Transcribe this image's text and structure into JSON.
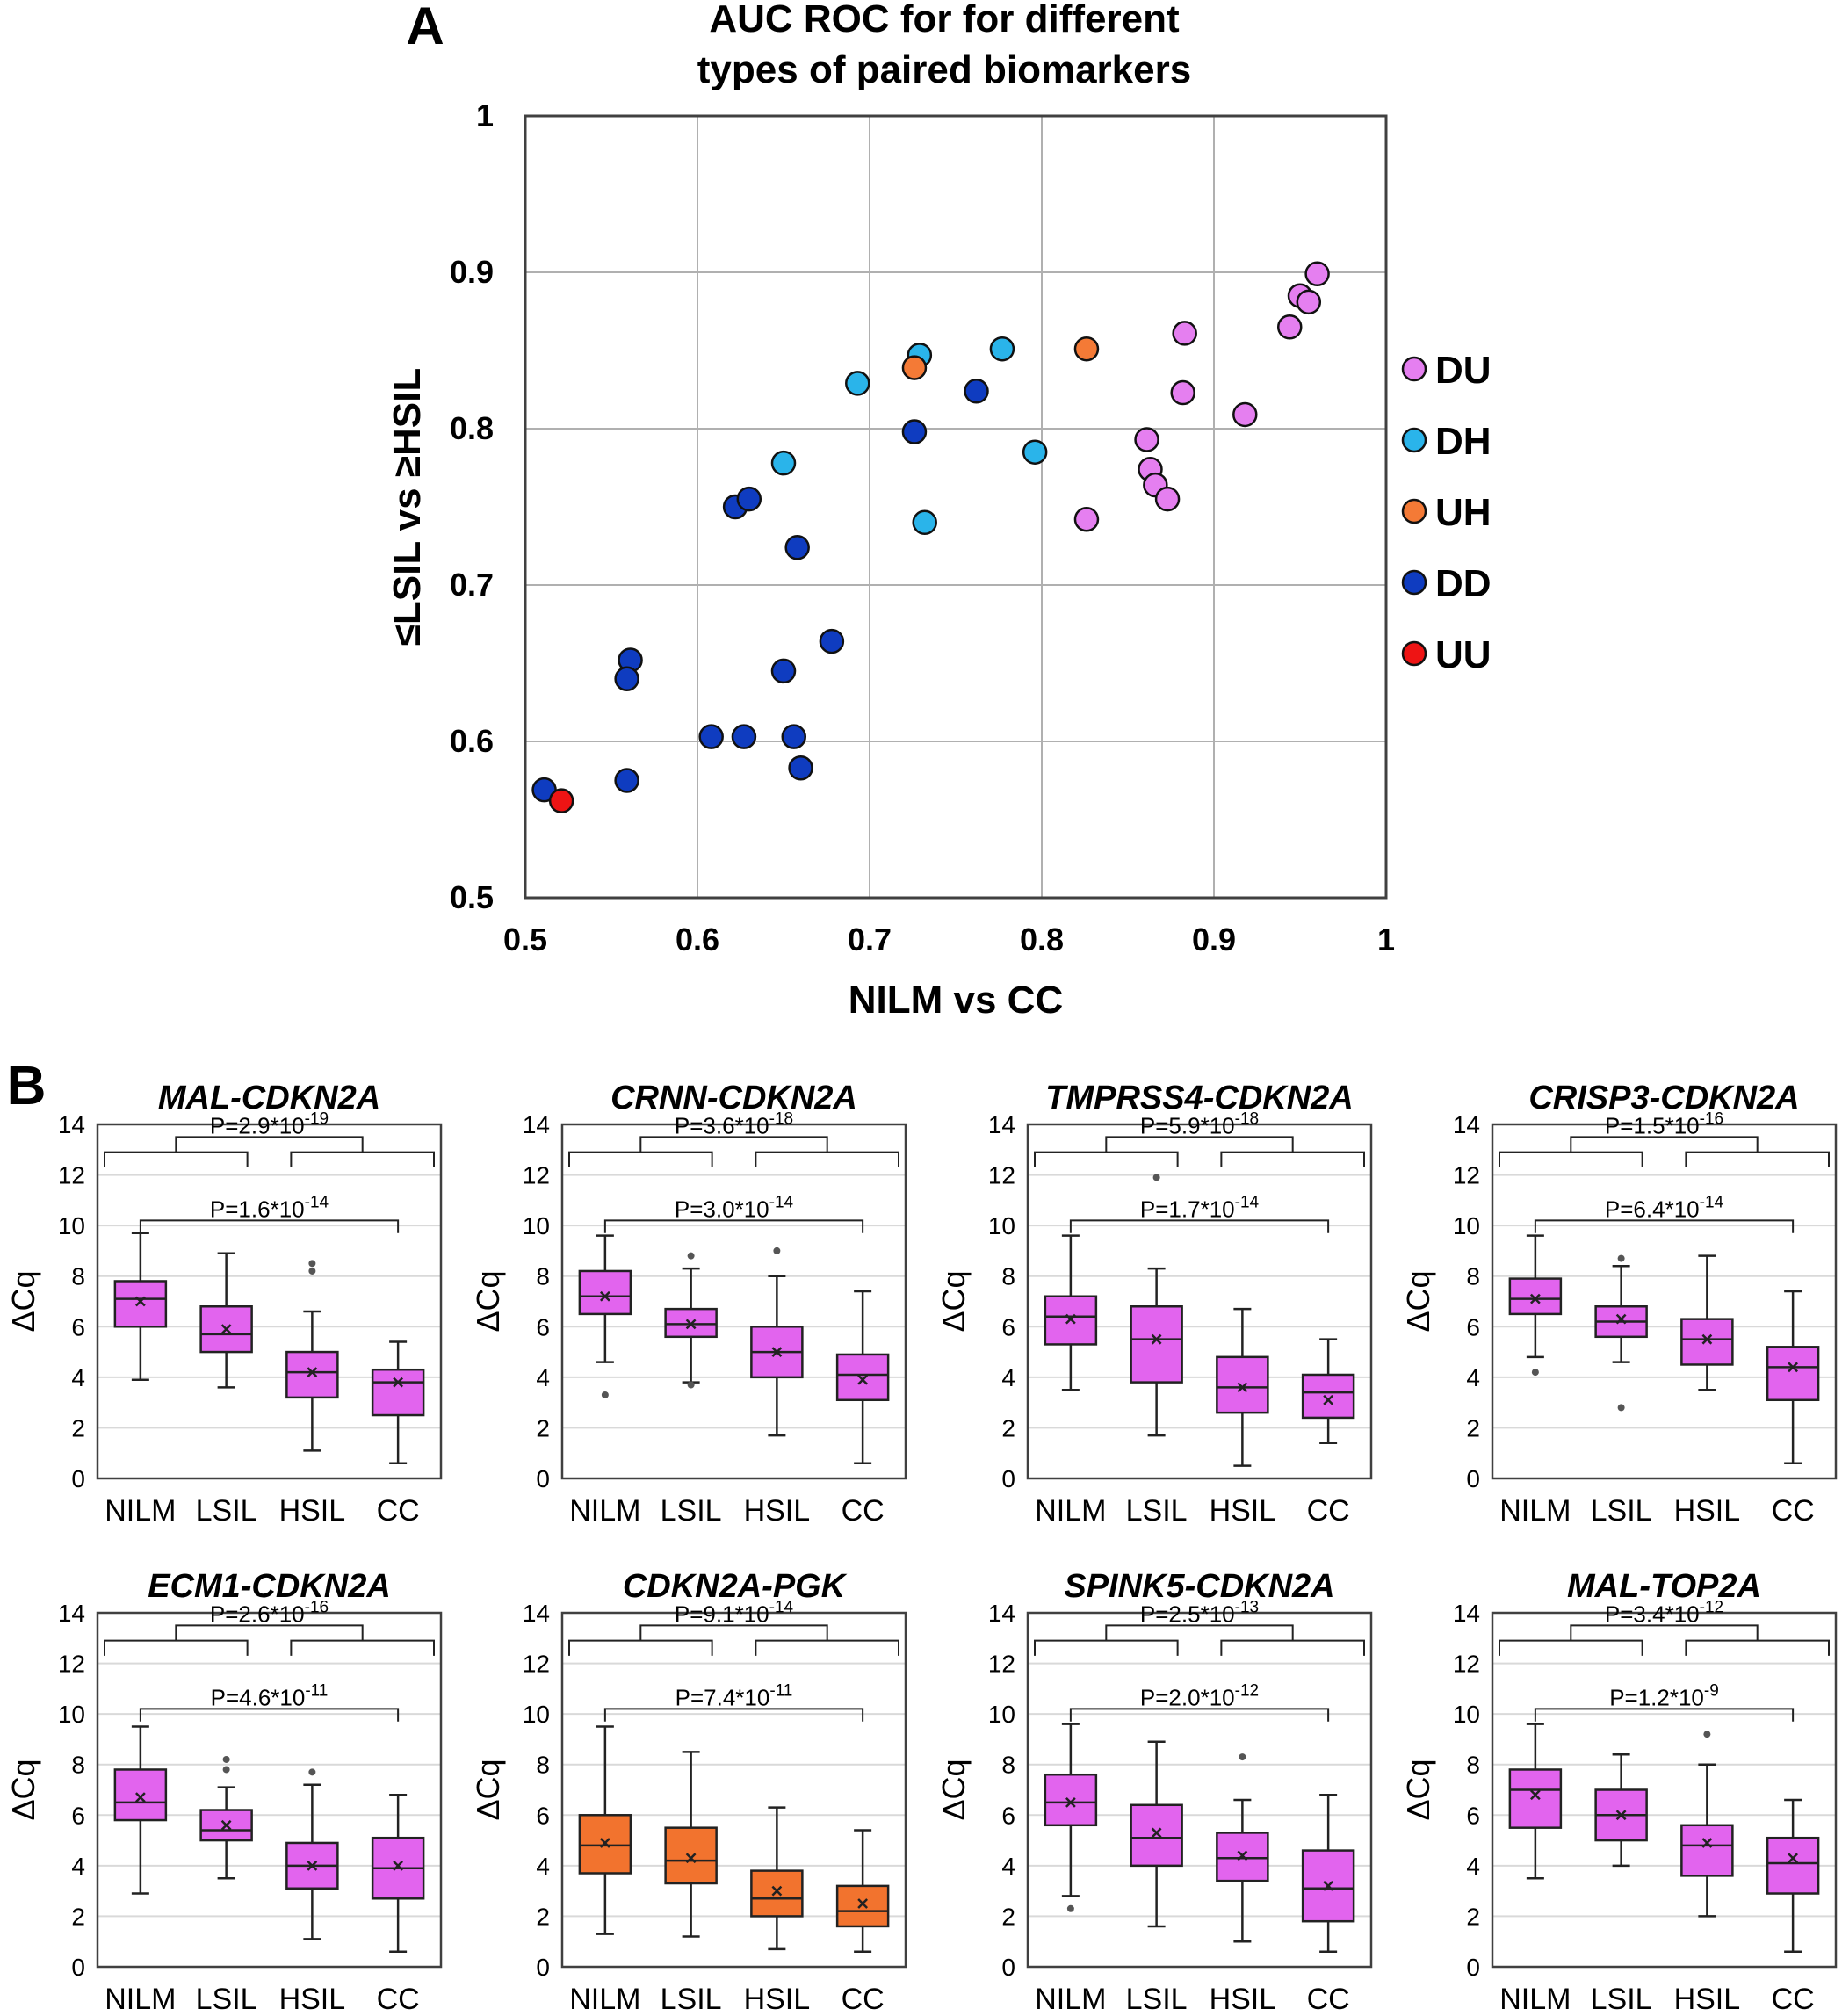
{
  "colors": {
    "DU": "#e57ff0",
    "DH": "#2ab4ea",
    "UH": "#f47a36",
    "DD": "#0f3cc0",
    "UU": "#ee1414",
    "box_magenta": "#e264ee",
    "box_orange": "#f2732e"
  },
  "panel_a": {
    "letter": "A",
    "title_line1": "AUC ROC for for different",
    "title_line2": "types of paired biomarkers"
  },
  "panel_b": {
    "letter": "B"
  },
  "chart_data": [
    {
      "type": "scatter",
      "title": "AUC ROC for for different types of paired biomarkers",
      "xlabel": "NILM vs CC",
      "ylabel": "≤LSIL vs ≥HSIL",
      "xlim": [
        0.5,
        1.0
      ],
      "ylim": [
        0.5,
        1.0
      ],
      "xticks": [
        "0.5",
        "0.6",
        "0.7",
        "0.8",
        "0.9",
        "1"
      ],
      "yticks": [
        "0.5",
        "0.6",
        "0.7",
        "0.8",
        "0.9",
        "1"
      ],
      "grid": true,
      "legend_position": "right",
      "legend": [
        "DU",
        "DH",
        "UH",
        "DD",
        "UU"
      ],
      "series": [
        {
          "name": "DU",
          "points": [
            [
              0.96,
              0.899
            ],
            [
              0.95,
              0.885
            ],
            [
              0.955,
              0.881
            ],
            [
              0.944,
              0.865
            ],
            [
              0.883,
              0.861
            ],
            [
              0.882,
              0.823
            ],
            [
              0.918,
              0.809
            ],
            [
              0.861,
              0.793
            ],
            [
              0.863,
              0.774
            ],
            [
              0.866,
              0.764
            ],
            [
              0.873,
              0.755
            ],
            [
              0.826,
              0.742
            ]
          ]
        },
        {
          "name": "DH",
          "points": [
            [
              0.729,
              0.847
            ],
            [
              0.777,
              0.851
            ],
            [
              0.693,
              0.829
            ],
            [
              0.65,
              0.778
            ],
            [
              0.796,
              0.785
            ],
            [
              0.732,
              0.74
            ]
          ]
        },
        {
          "name": "UH",
          "points": [
            [
              0.826,
              0.851
            ],
            [
              0.726,
              0.839
            ]
          ]
        },
        {
          "name": "DD",
          "points": [
            [
              0.762,
              0.824
            ],
            [
              0.726,
              0.798
            ],
            [
              0.622,
              0.75
            ],
            [
              0.63,
              0.755
            ],
            [
              0.658,
              0.724
            ],
            [
              0.678,
              0.664
            ],
            [
              0.561,
              0.652
            ],
            [
              0.559,
              0.64
            ],
            [
              0.65,
              0.645
            ],
            [
              0.608,
              0.603
            ],
            [
              0.627,
              0.603
            ],
            [
              0.656,
              0.603
            ],
            [
              0.66,
              0.583
            ],
            [
              0.559,
              0.575
            ],
            [
              0.511,
              0.569
            ]
          ]
        },
        {
          "name": "UU",
          "points": [
            [
              0.521,
              0.562
            ]
          ]
        }
      ]
    },
    {
      "type": "box",
      "title": "MAL-CDKN2A",
      "color": "magenta",
      "ylabel": "ΔCq",
      "ylim": [
        0,
        14
      ],
      "yticks": [
        "0",
        "2",
        "4",
        "6",
        "8",
        "10",
        "12",
        "14"
      ],
      "categories": [
        "NILM",
        "LSIL",
        "HSIL",
        "CC"
      ],
      "p_top": {
        "base": "P=2.9*10",
        "exp": "-19"
      },
      "p_bottom": {
        "base": "P=1.6*10",
        "exp": "-14"
      },
      "boxes": [
        {
          "min": 3.9,
          "q1": 6.0,
          "median": 7.1,
          "q3": 7.8,
          "max": 9.7,
          "mean": 7.0,
          "outliers": []
        },
        {
          "min": 3.6,
          "q1": 5.0,
          "median": 5.7,
          "q3": 6.8,
          "max": 8.9,
          "mean": 5.9,
          "outliers": []
        },
        {
          "min": 1.1,
          "q1": 3.2,
          "median": 4.2,
          "q3": 5.0,
          "max": 6.6,
          "mean": 4.2,
          "outliers": [
            8.5,
            8.2
          ]
        },
        {
          "min": 0.6,
          "q1": 2.5,
          "median": 3.8,
          "q3": 4.3,
          "max": 5.4,
          "mean": 3.8,
          "outliers": []
        }
      ]
    },
    {
      "type": "box",
      "title": "CRNN-CDKN2A",
      "color": "magenta",
      "ylabel": "ΔCq",
      "ylim": [
        0,
        14
      ],
      "yticks": [
        "0",
        "2",
        "4",
        "6",
        "8",
        "10",
        "12",
        "14"
      ],
      "categories": [
        "NILM",
        "LSIL",
        "HSIL",
        "CC"
      ],
      "p_top": {
        "base": "P=3.6*10",
        "exp": "-18"
      },
      "p_bottom": {
        "base": "P=3.0*10",
        "exp": "-14"
      },
      "boxes": [
        {
          "min": 4.6,
          "q1": 6.5,
          "median": 7.2,
          "q3": 8.2,
          "max": 9.6,
          "mean": 7.2,
          "outliers": [
            3.3
          ]
        },
        {
          "min": 3.8,
          "q1": 5.6,
          "median": 6.1,
          "q3": 6.7,
          "max": 8.3,
          "mean": 6.1,
          "outliers": [
            8.8,
            3.7
          ]
        },
        {
          "min": 1.7,
          "q1": 4.0,
          "median": 5.0,
          "q3": 6.0,
          "max": 8.0,
          "mean": 5.0,
          "outliers": [
            9.0
          ]
        },
        {
          "min": 0.6,
          "q1": 3.1,
          "median": 4.1,
          "q3": 4.9,
          "max": 7.4,
          "mean": 3.9,
          "outliers": []
        }
      ]
    },
    {
      "type": "box",
      "title": "TMPRSS4-CDKN2A",
      "color": "magenta",
      "ylabel": "ΔCq",
      "ylim": [
        0,
        14
      ],
      "yticks": [
        "0",
        "2",
        "4",
        "6",
        "8",
        "10",
        "12",
        "14"
      ],
      "categories": [
        "NILM",
        "LSIL",
        "HSIL",
        "CC"
      ],
      "p_top": {
        "base": "P=5.9*10",
        "exp": "-18"
      },
      "p_bottom": {
        "base": "P=1.7*10",
        "exp": "-14"
      },
      "boxes": [
        {
          "min": 3.5,
          "q1": 5.3,
          "median": 6.4,
          "q3": 7.2,
          "max": 9.6,
          "mean": 6.3,
          "outliers": []
        },
        {
          "min": 1.7,
          "q1": 3.8,
          "median": 5.5,
          "q3": 6.8,
          "max": 8.3,
          "mean": 5.5,
          "outliers": [
            11.9
          ]
        },
        {
          "min": 0.5,
          "q1": 2.6,
          "median": 3.6,
          "q3": 4.8,
          "max": 6.7,
          "mean": 3.6,
          "outliers": []
        },
        {
          "min": 1.4,
          "q1": 2.4,
          "median": 3.4,
          "q3": 4.1,
          "max": 5.5,
          "mean": 3.1,
          "outliers": []
        }
      ]
    },
    {
      "type": "box",
      "title": "CRISP3-CDKN2A",
      "color": "magenta",
      "ylabel": "ΔCq",
      "ylim": [
        0,
        14
      ],
      "yticks": [
        "0",
        "2",
        "4",
        "6",
        "8",
        "10",
        "12",
        "14"
      ],
      "categories": [
        "NILM",
        "LSIL",
        "HSIL",
        "CC"
      ],
      "p_top": {
        "base": "P=1.5*10",
        "exp": "-16"
      },
      "p_bottom": {
        "base": "P=6.4*10",
        "exp": "-14"
      },
      "boxes": [
        {
          "min": 4.8,
          "q1": 6.5,
          "median": 7.1,
          "q3": 7.9,
          "max": 9.6,
          "mean": 7.1,
          "outliers": [
            4.2
          ]
        },
        {
          "min": 4.6,
          "q1": 5.6,
          "median": 6.2,
          "q3": 6.8,
          "max": 8.4,
          "mean": 6.3,
          "outliers": [
            8.7,
            2.8
          ]
        },
        {
          "min": 3.5,
          "q1": 4.5,
          "median": 5.5,
          "q3": 6.3,
          "max": 8.8,
          "mean": 5.5,
          "outliers": []
        },
        {
          "min": 0.6,
          "q1": 3.1,
          "median": 4.4,
          "q3": 5.2,
          "max": 7.4,
          "mean": 4.4,
          "outliers": []
        }
      ]
    },
    {
      "type": "box",
      "title": "ECM1-CDKN2A",
      "color": "magenta",
      "ylabel": "ΔCq",
      "ylim": [
        0,
        14
      ],
      "yticks": [
        "0",
        "2",
        "4",
        "6",
        "8",
        "10",
        "12",
        "14"
      ],
      "categories": [
        "NILM",
        "LSIL",
        "HSIL",
        "CC"
      ],
      "p_top": {
        "base": "P=2.6*10",
        "exp": "-16"
      },
      "p_bottom": {
        "base": "P=4.6*10",
        "exp": "-11"
      },
      "boxes": [
        {
          "min": 2.9,
          "q1": 5.8,
          "median": 6.5,
          "q3": 7.8,
          "max": 9.5,
          "mean": 6.7,
          "outliers": []
        },
        {
          "min": 3.5,
          "q1": 5.0,
          "median": 5.4,
          "q3": 6.2,
          "max": 7.1,
          "mean": 5.6,
          "outliers": [
            8.2,
            7.8
          ]
        },
        {
          "min": 1.1,
          "q1": 3.1,
          "median": 4.0,
          "q3": 4.9,
          "max": 7.2,
          "mean": 4.0,
          "outliers": [
            7.7
          ]
        },
        {
          "min": 0.6,
          "q1": 2.7,
          "median": 3.9,
          "q3": 5.1,
          "max": 6.8,
          "mean": 4.0,
          "outliers": []
        }
      ]
    },
    {
      "type": "box",
      "title": "CDKN2A-PGK",
      "color": "orange",
      "ylabel": "ΔCq",
      "ylim": [
        0,
        14
      ],
      "yticks": [
        "0",
        "2",
        "4",
        "6",
        "8",
        "10",
        "12",
        "14"
      ],
      "categories": [
        "NILM",
        "LSIL",
        "HSIL",
        "CC"
      ],
      "p_top": {
        "base": "P=9.1*10",
        "exp": "-14"
      },
      "p_bottom": {
        "base": "P=7.4*10",
        "exp": "-11"
      },
      "boxes": [
        {
          "min": 1.3,
          "q1": 3.7,
          "median": 4.8,
          "q3": 6.0,
          "max": 9.5,
          "mean": 4.9,
          "outliers": []
        },
        {
          "min": 1.2,
          "q1": 3.3,
          "median": 4.2,
          "q3": 5.5,
          "max": 8.5,
          "mean": 4.3,
          "outliers": []
        },
        {
          "min": 0.7,
          "q1": 2.0,
          "median": 2.7,
          "q3": 3.8,
          "max": 6.3,
          "mean": 3.0,
          "outliers": []
        },
        {
          "min": 0.6,
          "q1": 1.6,
          "median": 2.2,
          "q3": 3.2,
          "max": 5.4,
          "mean": 2.5,
          "outliers": []
        }
      ]
    },
    {
      "type": "box",
      "title": "SPINK5-CDKN2A",
      "color": "magenta",
      "ylabel": "ΔCq",
      "ylim": [
        0,
        14
      ],
      "yticks": [
        "0",
        "2",
        "4",
        "6",
        "8",
        "10",
        "12",
        "14"
      ],
      "categories": [
        "NILM",
        "LSIL",
        "HSIL",
        "CC"
      ],
      "p_top": {
        "base": "P=2.5*10",
        "exp": "-13"
      },
      "p_bottom": {
        "base": "P=2.0*10",
        "exp": "-12"
      },
      "boxes": [
        {
          "min": 2.8,
          "q1": 5.6,
          "median": 6.5,
          "q3": 7.6,
          "max": 9.6,
          "mean": 6.5,
          "outliers": [
            2.3
          ]
        },
        {
          "min": 1.6,
          "q1": 4.0,
          "median": 5.1,
          "q3": 6.4,
          "max": 8.9,
          "mean": 5.3,
          "outliers": []
        },
        {
          "min": 1.0,
          "q1": 3.4,
          "median": 4.3,
          "q3": 5.3,
          "max": 6.6,
          "mean": 4.4,
          "outliers": [
            8.3
          ]
        },
        {
          "min": 0.6,
          "q1": 1.8,
          "median": 3.1,
          "q3": 4.6,
          "max": 6.8,
          "mean": 3.2,
          "outliers": []
        }
      ]
    },
    {
      "type": "box",
      "title": "MAL-TOP2A",
      "color": "magenta",
      "ylabel": "ΔCq",
      "ylim": [
        0,
        14
      ],
      "yticks": [
        "0",
        "2",
        "4",
        "6",
        "8",
        "10",
        "12",
        "14"
      ],
      "categories": [
        "NILM",
        "LSIL",
        "HSIL",
        "CC"
      ],
      "p_top": {
        "base": "P=3.4*10",
        "exp": "-12"
      },
      "p_bottom": {
        "base": "P=1.2*10",
        "exp": "-9"
      },
      "boxes": [
        {
          "min": 3.5,
          "q1": 5.5,
          "median": 7.0,
          "q3": 7.8,
          "max": 9.6,
          "mean": 6.8,
          "outliers": []
        },
        {
          "min": 4.0,
          "q1": 5.0,
          "median": 6.0,
          "q3": 7.0,
          "max": 8.4,
          "mean": 6.0,
          "outliers": []
        },
        {
          "min": 2.0,
          "q1": 3.6,
          "median": 4.8,
          "q3": 5.6,
          "max": 8.0,
          "mean": 4.9,
          "outliers": [
            9.2
          ]
        },
        {
          "min": 0.6,
          "q1": 2.9,
          "median": 4.1,
          "q3": 5.1,
          "max": 6.6,
          "mean": 4.3,
          "outliers": []
        }
      ]
    }
  ]
}
